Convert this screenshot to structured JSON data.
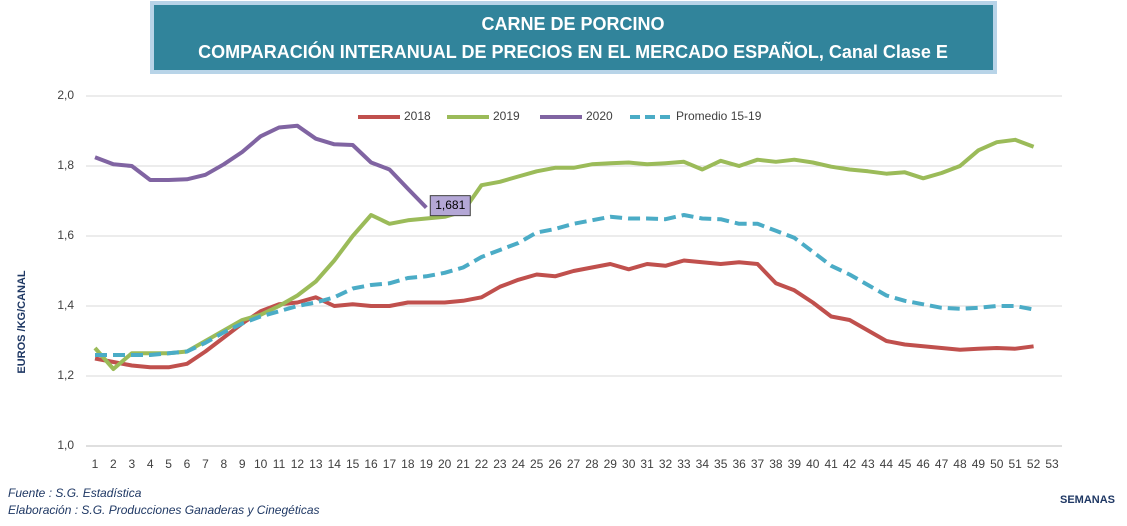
{
  "chart_data": {
    "type": "line",
    "title": "CARNE DE PORCINO",
    "subtitle": "COMPARACIÓN INTERANUAL DE PRECIOS EN EL MERCADO ESPAÑOL, Canal Clase E",
    "y_label": "EUROS /KG/CANAL",
    "x_label": "SEMANAS",
    "source": "Fuente :  S.G. Estadística",
    "credit": "Elaboración : S.G. Producciones Ganaderas y Cinegéticas",
    "categories": [
      1,
      2,
      3,
      4,
      5,
      6,
      7,
      8,
      9,
      10,
      11,
      12,
      13,
      14,
      15,
      16,
      17,
      18,
      19,
      20,
      21,
      22,
      23,
      24,
      25,
      26,
      27,
      28,
      29,
      30,
      31,
      32,
      33,
      34,
      35,
      36,
      37,
      38,
      39,
      40,
      41,
      42,
      43,
      44,
      45,
      46,
      47,
      48,
      49,
      50,
      51,
      52,
      53
    ],
    "ylim": [
      1.0,
      2.0
    ],
    "yticks": [
      {
        "value": 1.0,
        "label": "1,0"
      },
      {
        "value": 1.2,
        "label": "1,2"
      },
      {
        "value": 1.4,
        "label": "1,4"
      },
      {
        "value": 1.6,
        "label": "1,6"
      },
      {
        "value": 1.8,
        "label": "1,8"
      },
      {
        "value": 2.0,
        "label": "2,0"
      }
    ],
    "grid": true,
    "legend": "top",
    "series": [
      {
        "name": "2018",
        "color": "#c0504d",
        "dash": false,
        "values": [
          1.25,
          1.24,
          1.23,
          1.225,
          1.225,
          1.235,
          1.27,
          1.31,
          1.35,
          1.385,
          1.405,
          1.41,
          1.425,
          1.4,
          1.405,
          1.4,
          1.4,
          1.41,
          1.41,
          1.41,
          1.415,
          1.425,
          1.455,
          1.475,
          1.49,
          1.485,
          1.5,
          1.51,
          1.52,
          1.505,
          1.52,
          1.515,
          1.53,
          1.525,
          1.52,
          1.525,
          1.52,
          1.465,
          1.445,
          1.41,
          1.37,
          1.36,
          1.33,
          1.3,
          1.29,
          1.285,
          1.28,
          1.275,
          1.278,
          1.28,
          1.278,
          1.285,
          null
        ]
      },
      {
        "name": "2019",
        "color": "#9bbb59",
        "dash": false,
        "values": [
          1.28,
          1.22,
          1.265,
          1.265,
          1.265,
          1.27,
          1.3,
          1.33,
          1.36,
          1.375,
          1.4,
          1.43,
          1.47,
          1.53,
          1.6,
          1.66,
          1.635,
          1.645,
          1.65,
          1.655,
          1.67,
          1.745,
          1.755,
          1.77,
          1.785,
          1.795,
          1.795,
          1.805,
          1.808,
          1.81,
          1.805,
          1.808,
          1.812,
          1.79,
          1.815,
          1.8,
          1.818,
          1.812,
          1.818,
          1.81,
          1.798,
          1.79,
          1.785,
          1.778,
          1.782,
          1.765,
          1.78,
          1.8,
          1.845,
          1.868,
          1.875,
          1.855,
          null
        ]
      },
      {
        "name": "2020",
        "color": "#8064a2",
        "dash": false,
        "values": [
          1.825,
          1.805,
          1.8,
          1.76,
          1.76,
          1.762,
          1.775,
          1.805,
          1.84,
          1.885,
          1.91,
          1.915,
          1.878,
          1.862,
          1.86,
          1.81,
          1.79,
          1.735,
          1.681,
          null,
          null,
          null,
          null,
          null,
          null,
          null,
          null,
          null,
          null,
          null,
          null,
          null,
          null,
          null,
          null,
          null,
          null,
          null,
          null,
          null,
          null,
          null,
          null,
          null,
          null,
          null,
          null,
          null,
          null,
          null,
          null,
          null,
          null
        ],
        "value_labels": [
          null,
          null,
          null,
          null,
          null,
          null,
          null,
          null,
          null,
          null,
          null,
          null,
          null,
          null,
          null,
          null,
          null,
          null,
          "1,681",
          null,
          null,
          null,
          null,
          null,
          null,
          null,
          null,
          null,
          null,
          null,
          null,
          null,
          null,
          null,
          null,
          null,
          null,
          null,
          null,
          null,
          null,
          null,
          null,
          null,
          null,
          null,
          null,
          null,
          null,
          null,
          null,
          null,
          null
        ]
      },
      {
        "name": "Promedio 15-19",
        "color": "#4bacc6",
        "dash": true,
        "values": [
          1.26,
          1.26,
          1.26,
          1.26,
          1.265,
          1.27,
          1.295,
          1.325,
          1.35,
          1.37,
          1.385,
          1.4,
          1.41,
          1.425,
          1.45,
          1.46,
          1.465,
          1.48,
          1.485,
          1.495,
          1.51,
          1.54,
          1.56,
          1.58,
          1.61,
          1.62,
          1.635,
          1.645,
          1.655,
          1.65,
          1.65,
          1.648,
          1.66,
          1.65,
          1.648,
          1.635,
          1.635,
          1.615,
          1.595,
          1.555,
          1.515,
          1.49,
          1.46,
          1.43,
          1.415,
          1.405,
          1.395,
          1.392,
          1.395,
          1.4,
          1.4,
          1.39,
          null
        ]
      }
    ]
  }
}
